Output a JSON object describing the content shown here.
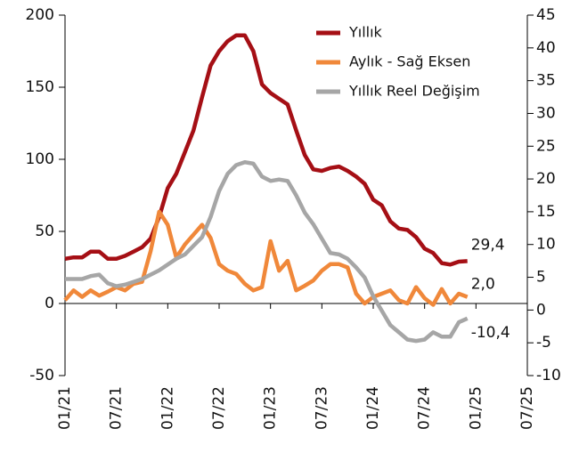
{
  "chart_data": {
    "type": "line",
    "categories": [
      "01/21",
      null,
      null,
      null,
      null,
      null,
      "07/21",
      null,
      null,
      null,
      null,
      null,
      "01/22",
      null,
      null,
      null,
      null,
      null,
      "07/22",
      null,
      null,
      null,
      null,
      null,
      "01/23",
      null,
      null,
      null,
      null,
      null,
      "07/23",
      null,
      null,
      null,
      null,
      null,
      "01/24",
      null,
      null,
      null,
      null,
      null,
      "07/24",
      null,
      null,
      null,
      null,
      null,
      "01/25",
      null,
      null,
      null,
      null,
      null,
      "07/25"
    ],
    "series": [
      {
        "name": "Yıllık",
        "color": "#a50f15",
        "axis": "y",
        "values": [
          31,
          32,
          32,
          36,
          36,
          31,
          31,
          33,
          36,
          39,
          45,
          60,
          80,
          90,
          105,
          120,
          143,
          165,
          175,
          182,
          186,
          186,
          175,
          152,
          146,
          142,
          138,
          120,
          103,
          93,
          92,
          94,
          95,
          92,
          88,
          83,
          72,
          68,
          57,
          52,
          51,
          46,
          38,
          35,
          28,
          27,
          29,
          29.4,
          null,
          null,
          null,
          null,
          null,
          null,
          null
        ]
      },
      {
        "name": "Aylık - Sağ Eksen",
        "color": "#f0883a",
        "axis": "y2",
        "values": [
          1.5,
          3,
          2,
          3,
          2.2,
          2.8,
          3.5,
          3,
          4,
          4.3,
          9,
          15,
          13,
          8,
          10,
          11.5,
          13,
          11,
          7,
          6,
          5.5,
          4,
          3,
          3.5,
          10.5,
          6,
          7.5,
          3,
          3.7,
          4.5,
          6,
          7,
          7,
          6.5,
          2.5,
          1,
          2,
          2.5,
          3,
          1.5,
          1,
          3.5,
          1.8,
          0.8,
          3.2,
          1,
          2.5,
          2.0,
          null,
          null,
          null,
          null,
          null,
          null,
          null
        ]
      },
      {
        "name": "Yıllık Reel Değişim",
        "color": "#a6a6a6",
        "axis": "y",
        "values": [
          17,
          17,
          17,
          19,
          20,
          14,
          12,
          13,
          15,
          17,
          20,
          23,
          27,
          31,
          34,
          40,
          46,
          60,
          78,
          90,
          96,
          98,
          97,
          88,
          85,
          86,
          85,
          75,
          63,
          55,
          45,
          35,
          34,
          31,
          25,
          18,
          5,
          -5,
          -15,
          -20,
          -25,
          -26,
          -25,
          -20,
          -23,
          -23,
          -13,
          -10.4,
          null,
          null,
          null,
          null,
          null,
          null,
          null
        ]
      }
    ],
    "end_labels": [
      "29,4",
      "2,0",
      "-10,4"
    ],
    "ylim": [
      -50,
      200
    ],
    "yticks": [
      -50,
      0,
      50,
      100,
      150,
      200
    ],
    "y2lim": [
      -10,
      45
    ],
    "y2ticks": [
      -10,
      -5,
      0,
      5,
      10,
      15,
      20,
      25,
      30,
      35,
      40,
      45
    ],
    "legend": "top"
  }
}
